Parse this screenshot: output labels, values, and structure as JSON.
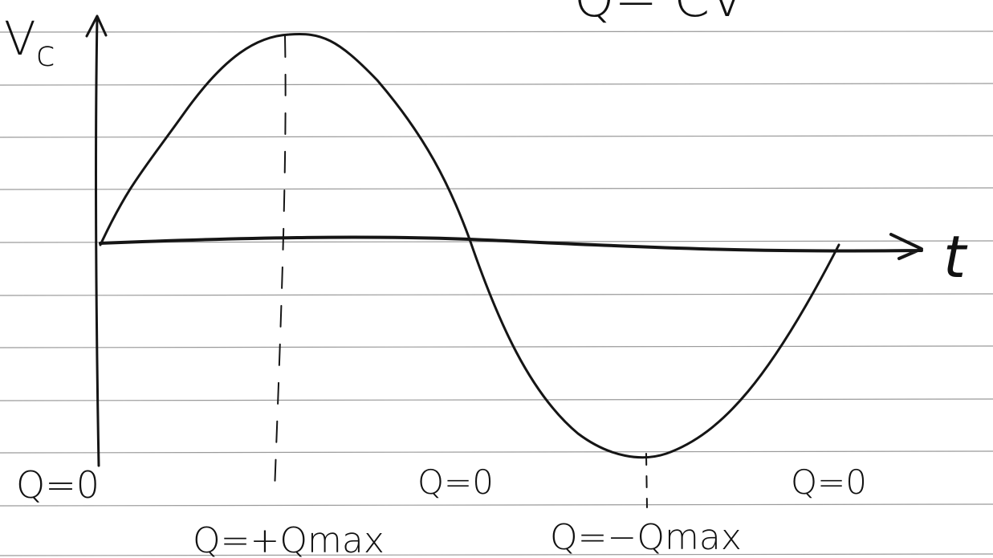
{
  "equation": "Q= CV",
  "axes": {
    "y_label": "V",
    "y_label_subscript": "c",
    "x_label": "t"
  },
  "labels": {
    "start": "Q=0",
    "peak": "Q=+Qmax",
    "middle": "Q=0",
    "trough": "Q=−Qmax",
    "end": "Q=0"
  }
}
